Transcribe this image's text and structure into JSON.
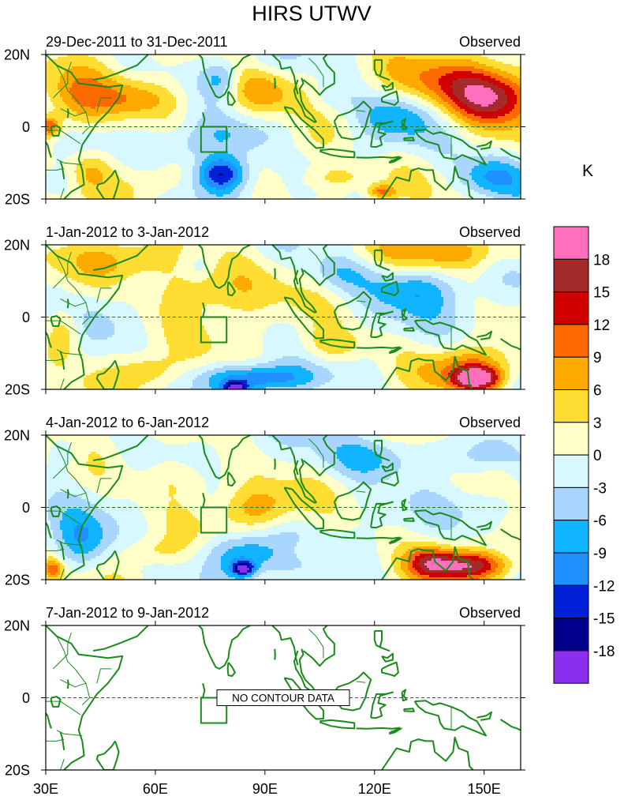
{
  "chart_data": {
    "type": "heatmap",
    "title": "HIRS UTWV",
    "units": "K",
    "xlim": [
      30,
      160
    ],
    "ylim": [
      -20,
      20
    ],
    "x_ticks": [
      {
        "value": 30,
        "label": "30E"
      },
      {
        "value": 60,
        "label": "60E"
      },
      {
        "value": 90,
        "label": "90E"
      },
      {
        "value": 120,
        "label": "120E"
      },
      {
        "value": 150,
        "label": "150E"
      }
    ],
    "y_ticks": [
      {
        "value": 20,
        "label": "20N"
      },
      {
        "value": 0,
        "label": "0"
      },
      {
        "value": -20,
        "label": "20S"
      }
    ],
    "colorbar": {
      "levels": [
        "18",
        "15",
        "12",
        "9",
        "6",
        "3",
        "0",
        "-3",
        "-6",
        "-9",
        "-12",
        "-15",
        "-18"
      ],
      "colors": [
        "#ff6fbe",
        "#a52a2a",
        "#d00000",
        "#ff6a00",
        "#ffaa00",
        "#ffdd33",
        "#ffffc8",
        "#d8f8ff",
        "#a8d6ff",
        "#10b4ff",
        "#1e90ff",
        "#0020d8",
        "#00008b",
        "#8c2ef0"
      ]
    },
    "panels": [
      {
        "period": "29-Dec-2011 to 31-Dec-2011",
        "kind": "Observed",
        "has_data": true,
        "features": [
          {
            "lon": 153,
            "lat": 8,
            "amp": 16,
            "rlon": 12,
            "rlat": 8
          },
          {
            "lon": 140,
            "lat": 12,
            "amp": 8,
            "rlon": 18,
            "rlat": 8
          },
          {
            "lon": 55,
            "lat": 8,
            "amp": 9,
            "rlon": 14,
            "rlat": 6
          },
          {
            "lon": 38,
            "lat": 6,
            "amp": 7,
            "rlon": 8,
            "rlat": 10
          },
          {
            "lon": 31,
            "lat": 0,
            "amp": 12,
            "rlon": 3,
            "rlat": 3
          },
          {
            "lon": 88,
            "lat": 10,
            "amp": 7,
            "rlon": 10,
            "rlat": 6
          },
          {
            "lon": 78,
            "lat": 13,
            "amp": -7,
            "rlon": 5,
            "rlat": 5
          },
          {
            "lon": 78,
            "lat": -13,
            "amp": -16,
            "rlon": 7,
            "rlat": 5
          },
          {
            "lon": 80,
            "lat": -3,
            "amp": -6,
            "rlon": 16,
            "rlat": 6
          },
          {
            "lon": 68,
            "lat": -6,
            "amp": -4,
            "rlon": 8,
            "rlat": 5
          },
          {
            "lon": 125,
            "lat": 3,
            "amp": -8,
            "rlon": 10,
            "rlat": 7
          },
          {
            "lon": 108,
            "lat": 8,
            "amp": -4,
            "rlon": 6,
            "rlat": 5
          },
          {
            "lon": 110,
            "lat": -14,
            "amp": 6,
            "rlon": 12,
            "rlat": 4
          },
          {
            "lon": 122,
            "lat": -18,
            "amp": 10,
            "rlon": 4,
            "rlat": 2
          },
          {
            "lon": 152,
            "lat": -14,
            "amp": -10,
            "rlon": 10,
            "rlat": 6
          },
          {
            "lon": 100,
            "lat": -6,
            "amp": 4,
            "rlon": 10,
            "rlat": 6
          },
          {
            "lon": 34,
            "lat": -15,
            "amp": -4,
            "rlon": 6,
            "rlat": 5
          },
          {
            "lon": 42,
            "lat": -12,
            "amp": 6,
            "rlon": 6,
            "rlat": 5
          },
          {
            "lon": 58,
            "lat": -16,
            "amp": 3,
            "rlon": 8,
            "rlat": 5
          }
        ]
      },
      {
        "period": "1-Jan-2012 to 3-Jan-2012",
        "kind": "Observed",
        "has_data": true,
        "features": [
          {
            "lon": 75,
            "lat": 8,
            "amp": 8,
            "rlon": 15,
            "rlat": 8
          },
          {
            "lon": 72,
            "lat": 14,
            "amp": -3,
            "rlon": 3,
            "rlat": 3
          },
          {
            "lon": 140,
            "lat": 18,
            "amp": 7,
            "rlon": 22,
            "rlat": 5
          },
          {
            "lon": 148,
            "lat": -17,
            "amp": 18,
            "rlon": 6,
            "rlat": 3
          },
          {
            "lon": 146,
            "lat": -14,
            "amp": 9,
            "rlon": 12,
            "rlat": 6
          },
          {
            "lon": 130,
            "lat": 8,
            "amp": -8,
            "rlon": 14,
            "rlat": 7
          },
          {
            "lon": 110,
            "lat": 12,
            "amp": -5,
            "rlon": 8,
            "rlat": 5
          },
          {
            "lon": 88,
            "lat": -17,
            "amp": -12,
            "rlon": 14,
            "rlat": 4
          },
          {
            "lon": 82,
            "lat": -20,
            "amp": -16,
            "rlon": 3,
            "rlat": 2
          },
          {
            "lon": 35,
            "lat": -4,
            "amp": 8,
            "rlon": 5,
            "rlat": 7
          },
          {
            "lon": 52,
            "lat": 16,
            "amp": 6,
            "rlon": 14,
            "rlat": 6
          },
          {
            "lon": 108,
            "lat": -8,
            "amp": 6,
            "rlon": 10,
            "rlat": 5
          },
          {
            "lon": 58,
            "lat": -15,
            "amp": 6,
            "rlon": 8,
            "rlat": 5
          },
          {
            "lon": 45,
            "lat": 0,
            "amp": -2,
            "rlon": 8,
            "rlat": 8
          }
        ]
      },
      {
        "period": "4-Jan-2012 to 6-Jan-2012",
        "kind": "Observed",
        "has_data": true,
        "features": [
          {
            "lon": 145,
            "lat": -16,
            "amp": 16,
            "rlon": 12,
            "rlat": 4
          },
          {
            "lon": 135,
            "lat": -15,
            "amp": 8,
            "rlon": 6,
            "rlat": 5
          },
          {
            "lon": 120,
            "lat": 14,
            "amp": -8,
            "rlon": 14,
            "rlat": 6
          },
          {
            "lon": 145,
            "lat": 14,
            "amp": -4,
            "rlon": 8,
            "rlat": 5
          },
          {
            "lon": 85,
            "lat": -13,
            "amp": -10,
            "rlon": 12,
            "rlat": 6
          },
          {
            "lon": 84,
            "lat": -17,
            "amp": -16,
            "rlon": 3,
            "rlat": 2
          },
          {
            "lon": 88,
            "lat": 0,
            "amp": 7,
            "rlon": 10,
            "rlat": 6
          },
          {
            "lon": 68,
            "lat": 8,
            "amp": 5,
            "rlon": 12,
            "rlat": 6
          },
          {
            "lon": 40,
            "lat": -10,
            "amp": -8,
            "rlon": 8,
            "rlat": 8
          },
          {
            "lon": 32,
            "lat": -17,
            "amp": 10,
            "rlon": 3,
            "rlat": 3
          },
          {
            "lon": 100,
            "lat": -12,
            "amp": 4,
            "rlon": 8,
            "rlat": 4
          },
          {
            "lon": 35,
            "lat": 15,
            "amp": -4,
            "rlon": 6,
            "rlat": 5
          },
          {
            "lon": 60,
            "lat": -12,
            "amp": 4,
            "rlon": 8,
            "rlat": 4
          },
          {
            "lon": 155,
            "lat": 8,
            "amp": 4,
            "rlon": 6,
            "rlat": 5
          },
          {
            "lon": 150,
            "lat": 0,
            "amp": -3,
            "rlon": 8,
            "rlat": 5
          }
        ]
      },
      {
        "period": "7-Jan-2012 to 9-Jan-2012",
        "kind": "Observed",
        "has_data": false,
        "no_data_text": "NO CONTOUR DATA",
        "features": []
      }
    ]
  },
  "box_region": {
    "lon_min": 72.5,
    "lon_max": 79.5,
    "lat_min": -7,
    "lat_max": 0
  }
}
